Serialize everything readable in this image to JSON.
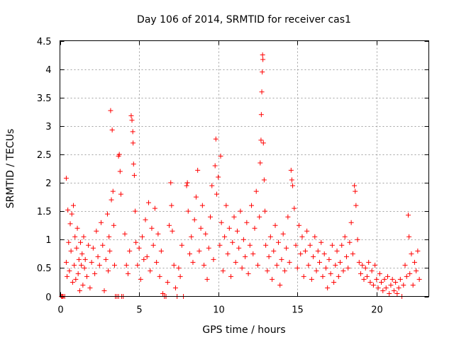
{
  "chart_data": {
    "type": "scatter",
    "title": "Day 106 of 2014, SRMTID for receiver cas1",
    "xlabel": "GPS time / hours",
    "ylabel": "SRMTID / TECUs",
    "xlim": [
      0,
      23.3
    ],
    "ylim": [
      0,
      4.5
    ],
    "xticks": [
      0,
      5,
      10,
      15,
      20
    ],
    "xtick_labels": [
      "0",
      "5",
      "10",
      "15",
      "20"
    ],
    "yticks": [
      0,
      0.5,
      1,
      1.5,
      2,
      2.5,
      3,
      3.5,
      4,
      4.5
    ],
    "ytick_labels": [
      "0",
      "0.5",
      "1",
      "1.5",
      "2",
      "2.5",
      "3",
      "3.5",
      "4",
      "4.5"
    ],
    "grid": true,
    "legend": "none",
    "marker": "+",
    "color": "#ff0000",
    "series": [
      {
        "name": "SRMTID",
        "points": [
          [
            0.1,
            0.0
          ],
          [
            0.15,
            0.0
          ],
          [
            0.2,
            0.0
          ],
          [
            0.3,
            0.0
          ],
          [
            0.4,
            2.08
          ],
          [
            0.4,
            0.6
          ],
          [
            0.45,
            0.35
          ],
          [
            0.5,
            1.52
          ],
          [
            0.55,
            0.95
          ],
          [
            0.6,
            0.45
          ],
          [
            0.65,
            1.28
          ],
          [
            0.7,
            0.8
          ],
          [
            0.75,
            1.45
          ],
          [
            0.8,
            0.25
          ],
          [
            0.85,
            1.6
          ],
          [
            0.9,
            0.55
          ],
          [
            0.95,
            1.05
          ],
          [
            1.0,
            0.3
          ],
          [
            1.05,
            0.85
          ],
          [
            1.1,
            1.2
          ],
          [
            1.15,
            0.4
          ],
          [
            1.2,
            0.65
          ],
          [
            1.25,
            0.1
          ],
          [
            1.3,
            0.95
          ],
          [
            1.35,
            0.55
          ],
          [
            1.4,
            0.75
          ],
          [
            1.45,
            0.2
          ],
          [
            1.5,
            1.05
          ],
          [
            1.55,
            0.5
          ],
          [
            1.6,
            0.65
          ],
          [
            1.7,
            0.35
          ],
          [
            1.8,
            0.9
          ],
          [
            1.9,
            0.15
          ],
          [
            2.0,
            0.6
          ],
          [
            2.1,
            0.85
          ],
          [
            2.2,
            0.4
          ],
          [
            2.3,
            1.15
          ],
          [
            2.4,
            0.7
          ],
          [
            2.5,
            0.55
          ],
          [
            2.6,
            1.3
          ],
          [
            2.7,
            0.9
          ],
          [
            2.8,
            0.1
          ],
          [
            2.9,
            0.65
          ],
          [
            3.0,
            1.45
          ],
          [
            3.05,
            0.45
          ],
          [
            3.1,
            1.05
          ],
          [
            3.15,
            0.8
          ],
          [
            3.2,
            3.27
          ],
          [
            3.25,
            1.7
          ],
          [
            3.3,
            2.93
          ],
          [
            3.35,
            1.85
          ],
          [
            3.4,
            1.25
          ],
          [
            3.45,
            0.55
          ],
          [
            3.5,
            0.0
          ],
          [
            3.6,
            0.0
          ],
          [
            3.7,
            2.47
          ],
          [
            3.7,
            0.0
          ],
          [
            3.75,
            2.5
          ],
          [
            3.8,
            2.2
          ],
          [
            3.85,
            1.8
          ],
          [
            3.9,
            0.0
          ],
          [
            4.0,
            0.0
          ],
          [
            4.1,
            1.1
          ],
          [
            4.2,
            0.55
          ],
          [
            4.3,
            0.4
          ],
          [
            4.4,
            0.8
          ],
          [
            4.5,
            3.18
          ],
          [
            4.55,
            3.1
          ],
          [
            4.6,
            2.9
          ],
          [
            4.62,
            2.7
          ],
          [
            4.65,
            2.33
          ],
          [
            4.7,
            2.13
          ],
          [
            4.75,
            1.5
          ],
          [
            4.8,
            0.95
          ],
          [
            4.9,
            0.55
          ],
          [
            5.0,
            0.85
          ],
          [
            5.1,
            0.3
          ],
          [
            5.2,
            1.05
          ],
          [
            5.3,
            0.65
          ],
          [
            5.4,
            1.35
          ],
          [
            5.5,
            0.7
          ],
          [
            5.6,
            1.65
          ],
          [
            5.7,
            0.45
          ],
          [
            5.8,
            1.2
          ],
          [
            5.9,
            0.9
          ],
          [
            6.0,
            1.55
          ],
          [
            6.1,
            0.6
          ],
          [
            6.2,
            1.1
          ],
          [
            6.3,
            0.35
          ],
          [
            6.4,
            0.8
          ],
          [
            6.5,
            0.05
          ],
          [
            6.6,
            0.0
          ],
          [
            6.7,
            0.0
          ],
          [
            6.8,
            0.25
          ],
          [
            6.9,
            1.25
          ],
          [
            7.0,
            2.0
          ],
          [
            7.05,
            1.6
          ],
          [
            7.1,
            1.15
          ],
          [
            7.2,
            0.55
          ],
          [
            7.3,
            0.15
          ],
          [
            7.4,
            0.0
          ],
          [
            7.5,
            0.5
          ],
          [
            7.6,
            0.35
          ],
          [
            7.7,
            0.9
          ],
          [
            7.8,
            0.0
          ],
          [
            8.0,
            1.95
          ],
          [
            8.05,
            2.0
          ],
          [
            8.1,
            1.5
          ],
          [
            8.2,
            0.75
          ],
          [
            8.3,
            1.05
          ],
          [
            8.4,
            0.6
          ],
          [
            8.5,
            1.35
          ],
          [
            8.6,
            1.75
          ],
          [
            8.7,
            2.22
          ],
          [
            8.8,
            0.8
          ],
          [
            8.9,
            1.2
          ],
          [
            9.0,
            1.6
          ],
          [
            9.1,
            0.55
          ],
          [
            9.2,
            1.1
          ],
          [
            9.3,
            0.3
          ],
          [
            9.4,
            0.85
          ],
          [
            9.5,
            1.4
          ],
          [
            9.6,
            1.95
          ],
          [
            9.7,
            0.65
          ],
          [
            9.8,
            2.3
          ],
          [
            9.85,
            2.77
          ],
          [
            9.9,
            1.8
          ],
          [
            10.0,
            2.1
          ],
          [
            10.1,
            0.9
          ],
          [
            10.15,
            2.47
          ],
          [
            10.2,
            1.3
          ],
          [
            10.3,
            0.45
          ],
          [
            10.4,
            1.05
          ],
          [
            10.5,
            1.6
          ],
          [
            10.6,
            0.75
          ],
          [
            10.7,
            1.2
          ],
          [
            10.8,
            0.35
          ],
          [
            10.9,
            0.95
          ],
          [
            11.0,
            1.4
          ],
          [
            11.1,
            0.6
          ],
          [
            11.2,
            1.15
          ],
          [
            11.3,
            0.85
          ],
          [
            11.4,
            1.5
          ],
          [
            11.5,
            0.5
          ],
          [
            11.6,
            1.0
          ],
          [
            11.7,
            0.7
          ],
          [
            11.8,
            1.3
          ],
          [
            11.9,
            0.4
          ],
          [
            12.0,
            0.9
          ],
          [
            12.1,
            1.6
          ],
          [
            12.2,
            0.75
          ],
          [
            12.3,
            1.2
          ],
          [
            12.4,
            1.85
          ],
          [
            12.5,
            0.55
          ],
          [
            12.6,
            1.4
          ],
          [
            12.65,
            2.35
          ],
          [
            12.7,
            2.75
          ],
          [
            12.72,
            3.2
          ],
          [
            12.75,
            3.6
          ],
          [
            12.78,
            3.95
          ],
          [
            12.8,
            4.25
          ],
          [
            12.82,
            4.17
          ],
          [
            12.85,
            2.7
          ],
          [
            12.9,
            2.05
          ],
          [
            12.95,
            1.5
          ],
          [
            13.0,
            0.9
          ],
          [
            13.1,
            0.45
          ],
          [
            13.2,
            0.7
          ],
          [
            13.3,
            1.05
          ],
          [
            13.4,
            0.3
          ],
          [
            13.5,
            0.8
          ],
          [
            13.6,
            1.25
          ],
          [
            13.7,
            0.55
          ],
          [
            13.8,
            0.95
          ],
          [
            13.9,
            0.2
          ],
          [
            14.0,
            0.65
          ],
          [
            14.1,
            1.1
          ],
          [
            14.2,
            0.45
          ],
          [
            14.3,
            0.85
          ],
          [
            14.4,
            1.4
          ],
          [
            14.5,
            0.6
          ],
          [
            14.6,
            2.22
          ],
          [
            14.65,
            2.05
          ],
          [
            14.7,
            1.95
          ],
          [
            14.8,
            1.55
          ],
          [
            14.9,
            0.9
          ],
          [
            15.0,
            0.5
          ],
          [
            15.1,
            1.25
          ],
          [
            15.2,
            0.75
          ],
          [
            15.3,
            1.05
          ],
          [
            15.4,
            0.35
          ],
          [
            15.5,
            0.8
          ],
          [
            15.6,
            1.15
          ],
          [
            15.7,
            0.55
          ],
          [
            15.8,
            0.9
          ],
          [
            15.9,
            0.3
          ],
          [
            16.0,
            0.7
          ],
          [
            16.1,
            1.05
          ],
          [
            16.2,
            0.45
          ],
          [
            16.3,
            0.8
          ],
          [
            16.4,
            0.6
          ],
          [
            16.5,
            0.95
          ],
          [
            16.6,
            0.35
          ],
          [
            16.7,
            0.75
          ],
          [
            16.8,
            0.5
          ],
          [
            16.9,
            0.15
          ],
          [
            17.0,
            0.65
          ],
          [
            17.1,
            0.4
          ],
          [
            17.2,
            0.9
          ],
          [
            17.3,
            0.25
          ],
          [
            17.4,
            0.55
          ],
          [
            17.5,
            0.8
          ],
          [
            17.6,
            0.35
          ],
          [
            17.7,
            0.6
          ],
          [
            17.8,
            0.9
          ],
          [
            17.9,
            0.45
          ],
          [
            18.0,
            1.05
          ],
          [
            18.1,
            0.7
          ],
          [
            18.2,
            0.5
          ],
          [
            18.3,
            0.95
          ],
          [
            18.4,
            1.3
          ],
          [
            18.5,
            0.75
          ],
          [
            18.6,
            1.95
          ],
          [
            18.65,
            1.85
          ],
          [
            18.7,
            1.6
          ],
          [
            18.8,
            1.0
          ],
          [
            18.9,
            0.6
          ],
          [
            19.0,
            0.4
          ],
          [
            19.1,
            0.55
          ],
          [
            19.2,
            0.3
          ],
          [
            19.3,
            0.5
          ],
          [
            19.4,
            0.35
          ],
          [
            19.5,
            0.6
          ],
          [
            19.6,
            0.25
          ],
          [
            19.7,
            0.45
          ],
          [
            19.8,
            0.2
          ],
          [
            19.9,
            0.55
          ],
          [
            20.0,
            0.3
          ],
          [
            20.1,
            0.15
          ],
          [
            20.2,
            0.4
          ],
          [
            20.3,
            0.25
          ],
          [
            20.4,
            0.1
          ],
          [
            20.5,
            0.3
          ],
          [
            20.6,
            0.15
          ],
          [
            20.7,
            0.35
          ],
          [
            20.8,
            0.05
          ],
          [
            20.9,
            0.2
          ],
          [
            21.0,
            0.3
          ],
          [
            21.1,
            0.1
          ],
          [
            21.2,
            0.25
          ],
          [
            21.3,
            0.05
          ],
          [
            21.4,
            0.15
          ],
          [
            21.5,
            0.3
          ],
          [
            21.6,
            0.0
          ],
          [
            21.7,
            0.2
          ],
          [
            21.8,
            0.55
          ],
          [
            21.9,
            0.35
          ],
          [
            22.0,
            1.43
          ],
          [
            22.05,
            1.05
          ],
          [
            22.1,
            0.4
          ],
          [
            22.2,
            0.75
          ],
          [
            22.3,
            0.2
          ],
          [
            22.4,
            0.6
          ],
          [
            22.5,
            0.45
          ],
          [
            22.6,
            0.8
          ],
          [
            22.7,
            0.3
          ]
        ]
      }
    ]
  }
}
